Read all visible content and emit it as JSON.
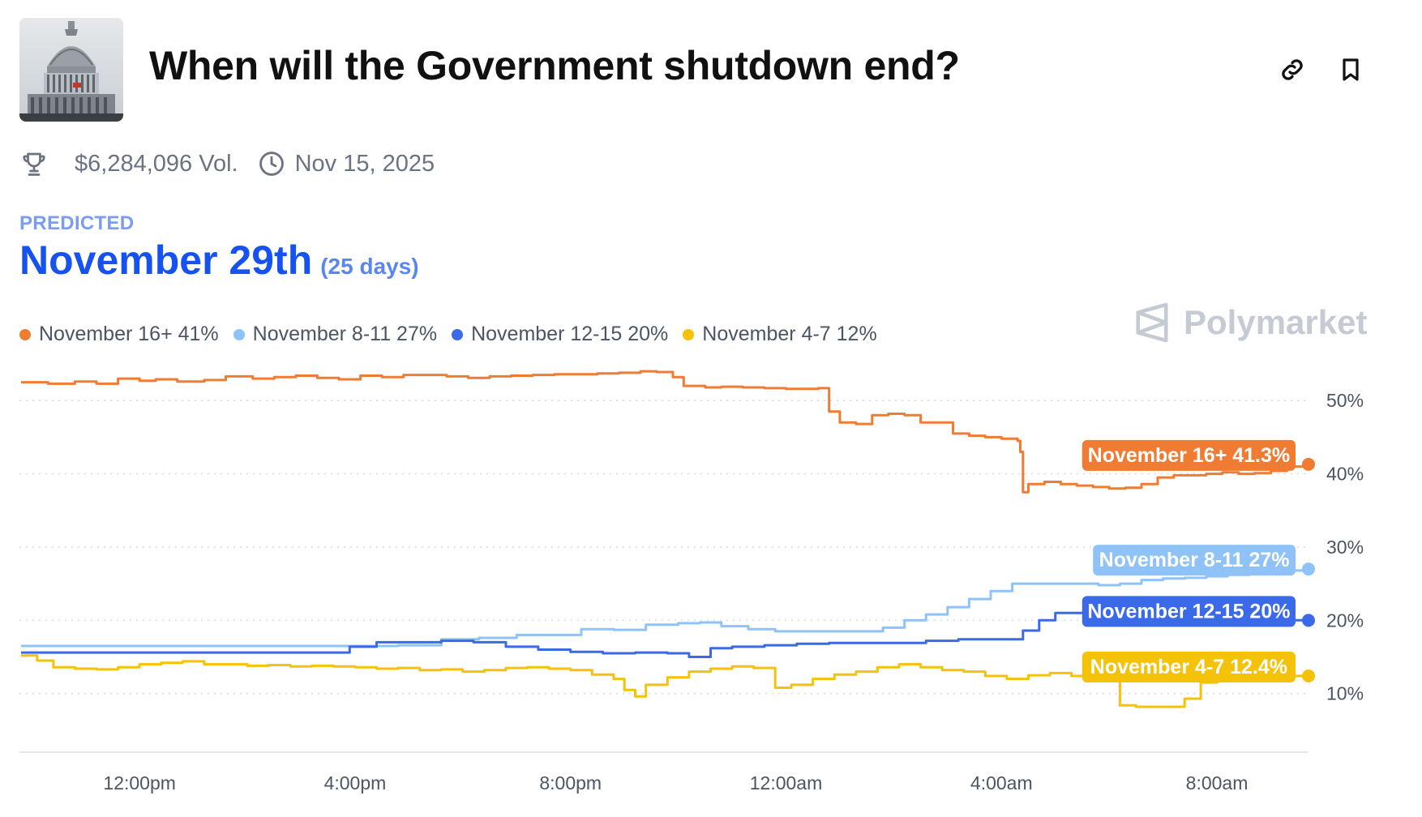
{
  "header": {
    "title": "When will the Government shutdown end?",
    "thumbnail_icon": "capitol-building-image",
    "link_icon": "link-icon",
    "bookmark_icon": "bookmark-icon"
  },
  "meta": {
    "volume": "$6,284,096 Vol.",
    "date": "Nov 15, 2025",
    "volume_icon": "trophy-icon",
    "date_icon": "clock-icon"
  },
  "prediction": {
    "label": "PREDICTED",
    "value": "November 29th",
    "days": "(25 days)"
  },
  "legend": [
    {
      "label": "November 16+ 41%",
      "color": "#f07c34"
    },
    {
      "label": "November 8-11 27%",
      "color": "#8fc3f8"
    },
    {
      "label": "November 12-15 20%",
      "color": "#3b6ae8"
    },
    {
      "label": "November 4-7 12%",
      "color": "#f5c20a"
    }
  ],
  "watermark": "Polymarket",
  "colors": {
    "accent": "#1652f0",
    "orange": "#f07c34",
    "lightblue": "#8fc3f8",
    "blue": "#3b6ae8",
    "yellow": "#f5c20a"
  },
  "chart_data": {
    "type": "line",
    "x_ticks": [
      "12:00pm",
      "4:00pm",
      "8:00pm",
      "12:00am",
      "4:00am",
      "8:00am"
    ],
    "x_tick_hours": [
      12,
      16,
      20,
      24,
      28,
      32
    ],
    "x_range_hours": [
      9.77,
      33.7
    ],
    "y_ticks": [
      "10%",
      "20%",
      "30%",
      "40%",
      "50%"
    ],
    "y_tick_values": [
      10,
      20,
      30,
      40,
      50
    ],
    "ylim": [
      2,
      56
    ],
    "grid": true,
    "series": [
      {
        "name": "November 16+",
        "end_label": "November 16+ 41.3%",
        "color": "#f07c34",
        "points": [
          [
            9.8,
            52.5
          ],
          [
            10.3,
            52.3
          ],
          [
            10.8,
            52.6
          ],
          [
            11.2,
            52.3
          ],
          [
            11.6,
            53
          ],
          [
            12,
            52.7
          ],
          [
            12.3,
            52.9
          ],
          [
            12.7,
            52.6
          ],
          [
            13.2,
            52.8
          ],
          [
            13.6,
            53.3
          ],
          [
            14.1,
            53.0
          ],
          [
            14.5,
            53.2
          ],
          [
            14.9,
            53.4
          ],
          [
            15.3,
            53.1
          ],
          [
            15.7,
            52.9
          ],
          [
            16.1,
            53.4
          ],
          [
            16.5,
            53.2
          ],
          [
            16.9,
            53.5
          ],
          [
            17.3,
            53.5
          ],
          [
            17.7,
            53.3
          ],
          [
            18.1,
            53.1
          ],
          [
            18.5,
            53.3
          ],
          [
            18.9,
            53.4
          ],
          [
            19.3,
            53.5
          ],
          [
            19.7,
            53.6
          ],
          [
            20.1,
            53.6
          ],
          [
            20.5,
            53.7
          ],
          [
            20.9,
            53.8
          ],
          [
            21.3,
            54.0
          ],
          [
            21.6,
            53.9
          ],
          [
            21.9,
            53.2
          ],
          [
            22.1,
            52.0
          ],
          [
            22.5,
            51.8
          ],
          [
            22.8,
            51.9
          ],
          [
            23.2,
            51.8
          ],
          [
            23.6,
            51.7
          ],
          [
            24,
            51.6
          ],
          [
            24.3,
            51.6
          ],
          [
            24.6,
            51.7
          ],
          [
            24.8,
            48.5
          ],
          [
            25.0,
            47.0
          ],
          [
            25.3,
            46.8
          ],
          [
            25.6,
            48.0
          ],
          [
            25.9,
            48.2
          ],
          [
            26.2,
            48.0
          ],
          [
            26.5,
            47.0
          ],
          [
            26.8,
            47.0
          ],
          [
            27.1,
            45.5
          ],
          [
            27.4,
            45.2
          ],
          [
            27.7,
            45.0
          ],
          [
            28.0,
            44.8
          ],
          [
            28.3,
            44.5
          ],
          [
            28.35,
            43.0
          ],
          [
            28.4,
            37.5
          ],
          [
            28.5,
            38.6
          ],
          [
            28.8,
            38.9
          ],
          [
            29.1,
            38.6
          ],
          [
            29.4,
            38.4
          ],
          [
            29.7,
            38.2
          ],
          [
            30.0,
            38.0
          ],
          [
            30.3,
            38.1
          ],
          [
            30.6,
            38.6
          ],
          [
            30.9,
            39.5
          ],
          [
            31.2,
            39.8
          ],
          [
            31.5,
            39.8
          ],
          [
            31.8,
            40.0
          ],
          [
            32.1,
            40.2
          ],
          [
            32.4,
            40.0
          ],
          [
            32.7,
            40.1
          ],
          [
            33.0,
            40.4
          ],
          [
            33.3,
            41.0
          ],
          [
            33.7,
            41.3
          ]
        ]
      },
      {
        "name": "November 8-11",
        "end_label": "November 8-11 27%",
        "color": "#8fc3f8",
        "points": [
          [
            9.8,
            16.5
          ],
          [
            11.2,
            16.5
          ],
          [
            12.6,
            16.5
          ],
          [
            14,
            16.5
          ],
          [
            15.4,
            16.5
          ],
          [
            16.8,
            16.6
          ],
          [
            17.6,
            17.4
          ],
          [
            18.3,
            17.6
          ],
          [
            19.0,
            18.0
          ],
          [
            19.7,
            18.0
          ],
          [
            20.2,
            18.8
          ],
          [
            20.8,
            18.7
          ],
          [
            21.4,
            19.4
          ],
          [
            22.0,
            19.6
          ],
          [
            22.4,
            19.7
          ],
          [
            22.8,
            19.2
          ],
          [
            23.3,
            18.8
          ],
          [
            23.8,
            18.5
          ],
          [
            24.3,
            18.5
          ],
          [
            24.8,
            18.5
          ],
          [
            25.3,
            18.5
          ],
          [
            25.8,
            19.0
          ],
          [
            26.2,
            20.0
          ],
          [
            26.6,
            20.8
          ],
          [
            27.0,
            21.8
          ],
          [
            27.4,
            22.9
          ],
          [
            27.8,
            24.0
          ],
          [
            28.2,
            25.0
          ],
          [
            28.6,
            25.0
          ],
          [
            29.0,
            25.0
          ],
          [
            29.4,
            25.0
          ],
          [
            29.8,
            24.8
          ],
          [
            30.2,
            25.0
          ],
          [
            30.6,
            25.5
          ],
          [
            31.0,
            25.7
          ],
          [
            31.4,
            25.8
          ],
          [
            31.8,
            26.0
          ],
          [
            32.2,
            26.2
          ],
          [
            32.6,
            26.4
          ],
          [
            33.0,
            26.6
          ],
          [
            33.3,
            26.8
          ],
          [
            33.7,
            27.0
          ]
        ]
      },
      {
        "name": "November 12-15",
        "end_label": "November 12-15 20%",
        "color": "#3b6ae8",
        "points": [
          [
            9.8,
            15.6
          ],
          [
            11,
            15.6
          ],
          [
            12.2,
            15.6
          ],
          [
            13.4,
            15.6
          ],
          [
            14.6,
            15.6
          ],
          [
            15.4,
            15.6
          ],
          [
            15.9,
            16.4
          ],
          [
            16.4,
            17.0
          ],
          [
            17.0,
            17.0
          ],
          [
            17.6,
            17.2
          ],
          [
            18.2,
            17.0
          ],
          [
            18.8,
            16.4
          ],
          [
            19.4,
            16.0
          ],
          [
            20.0,
            15.7
          ],
          [
            20.6,
            15.5
          ],
          [
            21.2,
            15.6
          ],
          [
            21.8,
            15.5
          ],
          [
            22.2,
            15.0
          ],
          [
            22.6,
            16.2
          ],
          [
            23.0,
            16.4
          ],
          [
            23.6,
            16.6
          ],
          [
            24.2,
            16.8
          ],
          [
            24.8,
            16.9
          ],
          [
            25.4,
            16.9
          ],
          [
            26.0,
            16.9
          ],
          [
            26.6,
            17.2
          ],
          [
            27.2,
            17.4
          ],
          [
            27.8,
            17.4
          ],
          [
            28.4,
            18.6
          ],
          [
            28.7,
            20.0
          ],
          [
            29.0,
            21.0
          ],
          [
            29.4,
            21.0
          ],
          [
            29.8,
            21.0
          ],
          [
            30.2,
            21.0
          ],
          [
            30.6,
            21.0
          ],
          [
            31.0,
            20.6
          ],
          [
            31.4,
            20.4
          ],
          [
            31.8,
            20.2
          ],
          [
            32.2,
            20.2
          ],
          [
            32.6,
            20.1
          ],
          [
            33.0,
            20.0
          ],
          [
            33.3,
            20.0
          ],
          [
            33.7,
            20.0
          ]
        ]
      },
      {
        "name": "November 4-7",
        "end_label": "November 4-7 12.4%",
        "color": "#f5c20a",
        "points": [
          [
            9.8,
            15.2
          ],
          [
            10.1,
            14.5
          ],
          [
            10.4,
            13.6
          ],
          [
            10.8,
            13.4
          ],
          [
            11.2,
            13.3
          ],
          [
            11.6,
            13.6
          ],
          [
            12.0,
            14.0
          ],
          [
            12.4,
            14.2
          ],
          [
            12.8,
            14.4
          ],
          [
            13.2,
            14.0
          ],
          [
            13.6,
            14.0
          ],
          [
            14.0,
            13.8
          ],
          [
            14.4,
            13.9
          ],
          [
            14.8,
            13.7
          ],
          [
            15.2,
            13.8
          ],
          [
            15.6,
            13.7
          ],
          [
            16.0,
            13.6
          ],
          [
            16.4,
            13.4
          ],
          [
            16.8,
            13.5
          ],
          [
            17.2,
            13.2
          ],
          [
            17.6,
            13.3
          ],
          [
            18.0,
            13.0
          ],
          [
            18.4,
            13.2
          ],
          [
            18.8,
            13.5
          ],
          [
            19.2,
            13.6
          ],
          [
            19.6,
            13.4
          ],
          [
            20.0,
            13.2
          ],
          [
            20.4,
            12.6
          ],
          [
            20.8,
            12.0
          ],
          [
            21.0,
            10.5
          ],
          [
            21.2,
            9.6
          ],
          [
            21.4,
            11.2
          ],
          [
            21.8,
            12.2
          ],
          [
            22.2,
            13.0
          ],
          [
            22.6,
            13.4
          ],
          [
            23.0,
            13.7
          ],
          [
            23.4,
            13.5
          ],
          [
            23.8,
            10.8
          ],
          [
            24.1,
            11.2
          ],
          [
            24.5,
            12.0
          ],
          [
            24.9,
            12.6
          ],
          [
            25.3,
            13.0
          ],
          [
            25.7,
            13.6
          ],
          [
            26.1,
            14.0
          ],
          [
            26.5,
            13.6
          ],
          [
            26.9,
            13.2
          ],
          [
            27.3,
            13.0
          ],
          [
            27.7,
            12.4
          ],
          [
            28.1,
            12.0
          ],
          [
            28.5,
            12.5
          ],
          [
            28.9,
            12.8
          ],
          [
            29.3,
            12.4
          ],
          [
            29.7,
            12.2
          ],
          [
            30.0,
            12.0
          ],
          [
            30.2,
            8.4
          ],
          [
            30.5,
            8.2
          ],
          [
            30.8,
            8.2
          ],
          [
            31.1,
            8.2
          ],
          [
            31.4,
            9.3
          ],
          [
            31.7,
            11.5
          ],
          [
            32.0,
            12.0
          ],
          [
            32.4,
            12.3
          ],
          [
            32.8,
            12.3
          ],
          [
            33.2,
            12.4
          ],
          [
            33.7,
            12.4
          ]
        ]
      }
    ]
  }
}
